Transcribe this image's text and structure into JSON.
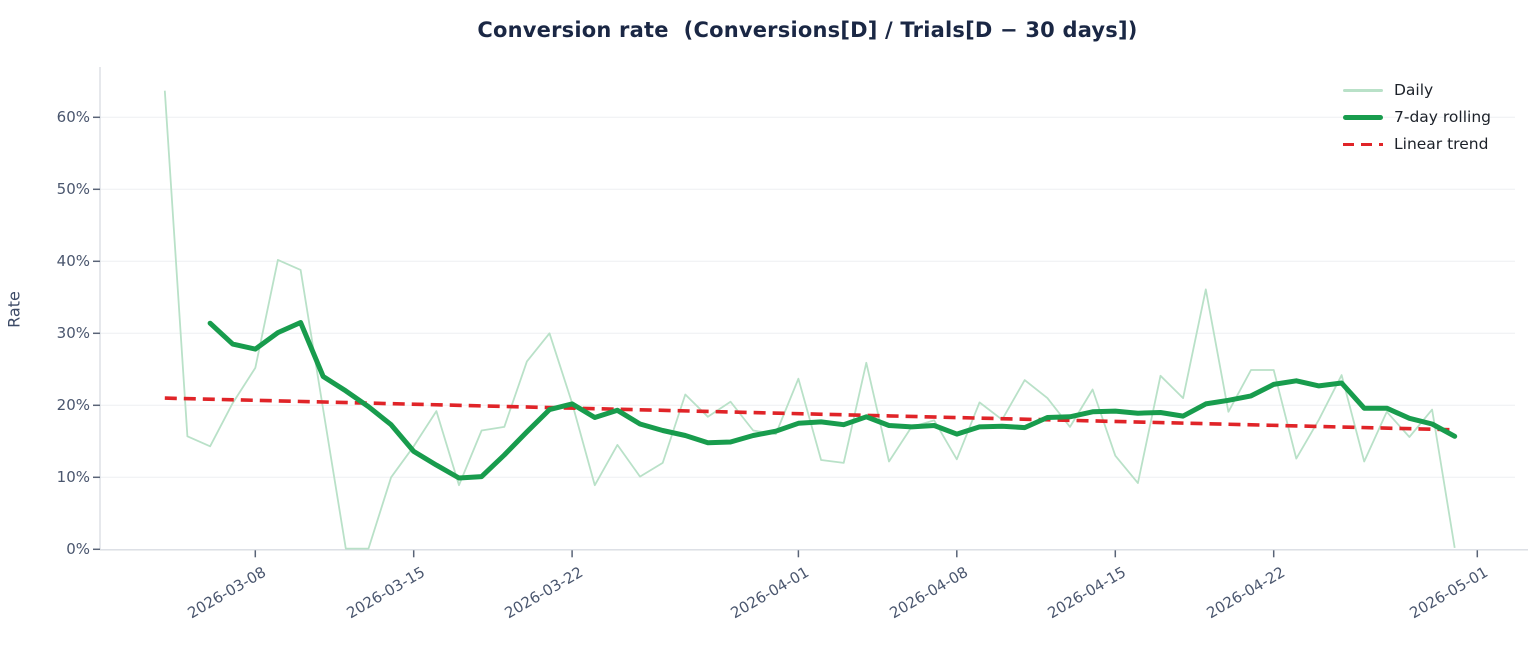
{
  "colors": {
    "background": "#ffffff",
    "daily_line": "#b9e1c8",
    "rolling_line": "#189c4d",
    "trend_line": "#e02428",
    "title_text": "#1a2744",
    "tick_label_text": "#4a566e",
    "legend_text": "#1c2129",
    "gridline": "#edeff2",
    "spine": "#d8dce2",
    "tick_mark": "#5a6477"
  },
  "chart_data": {
    "type": "line",
    "title": "Conversion rate  (Conversions[D] / Trials[D − 30 days])",
    "xlabel": "",
    "ylabel": "Rate",
    "grid": true,
    "legend_position": "top-right",
    "ylim": [
      0,
      65
    ],
    "y_ticks": {
      "values": [
        0,
        10,
        20,
        30,
        40,
        50,
        60
      ],
      "labels": [
        "0%",
        "10%",
        "20%",
        "30%",
        "40%",
        "50%",
        "60%"
      ]
    },
    "x_ticks": [
      "2026-03-08",
      "2026-03-15",
      "2026-03-22",
      "2026-04-01",
      "2026-04-08",
      "2026-04-15",
      "2026-04-22",
      "2026-05-01"
    ],
    "x": [
      "2026-03-04",
      "2026-03-05",
      "2026-03-06",
      "2026-03-07",
      "2026-03-08",
      "2026-03-09",
      "2026-03-10",
      "2026-03-11",
      "2026-03-12",
      "2026-03-13",
      "2026-03-14",
      "2026-03-15",
      "2026-03-16",
      "2026-03-17",
      "2026-03-18",
      "2026-03-19",
      "2026-03-20",
      "2026-03-21",
      "2026-03-22",
      "2026-03-23",
      "2026-03-24",
      "2026-03-25",
      "2026-03-26",
      "2026-03-27",
      "2026-03-28",
      "2026-03-29",
      "2026-03-30",
      "2026-03-31",
      "2026-04-01",
      "2026-04-02",
      "2026-04-03",
      "2026-04-04",
      "2026-04-05",
      "2026-04-06",
      "2026-04-07",
      "2026-04-08",
      "2026-04-09",
      "2026-04-10",
      "2026-04-11",
      "2026-04-12",
      "2026-04-13",
      "2026-04-14",
      "2026-04-15",
      "2026-04-16",
      "2026-04-17",
      "2026-04-18",
      "2026-04-19",
      "2026-04-20",
      "2026-04-21",
      "2026-04-22",
      "2026-04-23",
      "2026-04-24",
      "2026-04-25",
      "2026-04-26",
      "2026-04-27",
      "2026-04-28",
      "2026-04-29",
      "2026-04-30"
    ],
    "series": [
      {
        "name": "Daily",
        "unit": "%",
        "values": [
          63.7,
          15.7,
          14.3,
          20.3,
          25.2,
          40.2,
          38.8,
          19.4,
          0.1,
          0.1,
          10.0,
          14.3,
          19.2,
          8.9,
          16.5,
          17.0,
          26.1,
          30.0,
          20.3,
          8.9,
          14.5,
          10.1,
          12.0,
          21.5,
          18.4,
          20.5,
          16.5,
          16.0,
          23.7,
          12.4,
          12.0,
          25.9,
          12.2,
          17.0,
          17.9,
          12.5,
          20.4,
          18.0,
          23.5,
          21.0,
          17.0,
          22.2,
          13.0,
          9.2,
          24.1,
          21.0,
          36.1,
          19.1,
          24.9,
          24.9,
          12.6,
          18.0,
          24.2,
          12.2,
          19.1,
          15.6,
          19.4,
          0.2
        ]
      },
      {
        "name": "7-day rolling",
        "unit": "%",
        "values": [
          null,
          null,
          31.4,
          28.5,
          27.8,
          30.1,
          31.5,
          24.0,
          22.0,
          19.8,
          17.3,
          13.6,
          11.7,
          9.9,
          10.1,
          13.1,
          16.3,
          19.4,
          20.2,
          18.3,
          19.3,
          17.4,
          16.5,
          15.8,
          14.8,
          14.9,
          15.8,
          16.4,
          17.5,
          17.7,
          17.3,
          18.4,
          17.2,
          17.0,
          17.2,
          16.0,
          17.0,
          17.1,
          16.9,
          18.3,
          18.4,
          19.1,
          19.2,
          18.9,
          19.0,
          18.5,
          20.2,
          20.7,
          21.3,
          22.9,
          23.4,
          22.7,
          23.1,
          19.6,
          19.6,
          18.2,
          17.4,
          15.7
        ]
      },
      {
        "name": "Linear trend",
        "unit": "%",
        "trend": {
          "start_date": "2026-03-04",
          "start_value": 21.0,
          "end_date": "2026-04-30",
          "end_value": 16.6
        }
      }
    ]
  }
}
